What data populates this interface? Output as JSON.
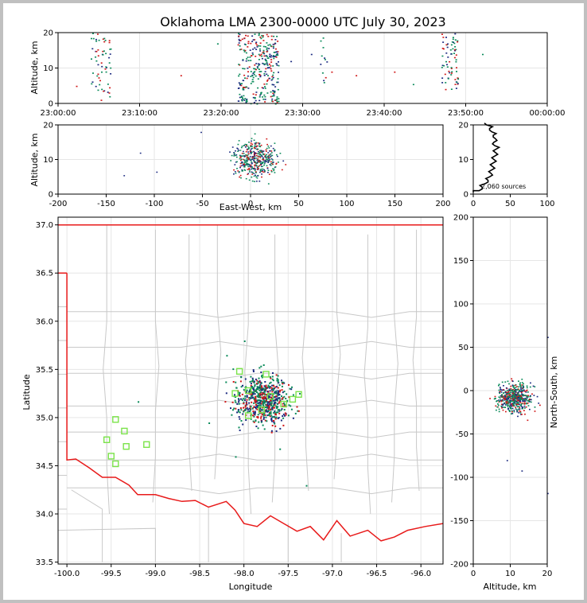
{
  "title": "Oklahoma LMA 2300-0000 UTC July 30, 2023",
  "colors": {
    "early": "#1b2a80",
    "mid": "#0a8a5a",
    "late": "#d01818",
    "stations": "#7be34a",
    "border": "#e81a1a",
    "county": "#c8c8c8"
  },
  "chart_data": [
    {
      "name": "time_height",
      "type": "scatter",
      "xlabel": "",
      "ylabel": "Altitude, km",
      "xticks": [
        "23:00:00",
        "23:10:00",
        "23:20:00",
        "23:30:00",
        "23:40:00",
        "23:50:00",
        "00:00:00"
      ],
      "xlim_minutes": [
        0,
        60
      ],
      "yticks": [
        0,
        10,
        20
      ],
      "ylim": [
        0,
        20
      ],
      "grid": true,
      "clusters": [
        {
          "t_min": 4.0,
          "t_max": 6.5,
          "alt_min": 1,
          "alt_max": 20,
          "count": 60
        },
        {
          "t_min": 22.0,
          "t_max": 27.0,
          "alt_min": 0,
          "alt_max": 20,
          "count": 320
        },
        {
          "t_min": 32.0,
          "t_max": 33.0,
          "alt_min": 6,
          "alt_max": 19,
          "count": 12
        },
        {
          "t_min": 47.0,
          "t_max": 49.0,
          "alt_min": 4,
          "alt_max": 20,
          "count": 70
        }
      ]
    },
    {
      "name": "east_west_altitude",
      "type": "scatter",
      "xlabel": "East-West, km",
      "ylabel": "Altitude, km",
      "xticks": [
        -200,
        -150,
        -100,
        -50,
        0,
        50,
        100,
        150,
        200
      ],
      "xlim": [
        -200,
        200
      ],
      "yticks": [
        0,
        10,
        20
      ],
      "ylim": [
        0,
        20
      ],
      "grid": true
    },
    {
      "name": "altitude_histogram",
      "type": "line",
      "xticks": [
        0,
        50,
        100
      ],
      "xlim": [
        0,
        100
      ],
      "yticks": [
        0,
        10,
        20
      ],
      "ylim": [
        0,
        20
      ],
      "annotation": "2,060 sources",
      "profile": [
        [
          0,
          0.5
        ],
        [
          8,
          1
        ],
        [
          12,
          2
        ],
        [
          16,
          3
        ],
        [
          20,
          4
        ],
        [
          22,
          5
        ],
        [
          24,
          6
        ],
        [
          25,
          7
        ],
        [
          26,
          8
        ],
        [
          27,
          9
        ],
        [
          28,
          10
        ],
        [
          29,
          11
        ],
        [
          30,
          12
        ],
        [
          31,
          13
        ],
        [
          29,
          14
        ],
        [
          28,
          15
        ],
        [
          30,
          16
        ],
        [
          27,
          17
        ],
        [
          25,
          18
        ],
        [
          22,
          19
        ],
        [
          18,
          20
        ]
      ]
    },
    {
      "name": "plan_view",
      "type": "scatter",
      "xlabel": "Longitude",
      "ylabel": "Latitude",
      "xticks": [
        "-100.0",
        "-99.5",
        "-99.0",
        "-98.5",
        "-98.0",
        "-97.5",
        "-97.0",
        "-96.5",
        "-96.0"
      ],
      "xlim": [
        -100.1,
        -95.75
      ],
      "yticks": [
        "33.5",
        "34.0",
        "34.5",
        "35.0",
        "35.5",
        "36.0",
        "36.5",
        "37.0"
      ],
      "ylim": [
        33.48,
        37.08
      ],
      "grid": true,
      "source_center": [
        -97.8,
        35.2
      ],
      "source_spread": [
        0.3,
        0.25
      ],
      "stations": [
        [
          -99.45,
          34.98
        ],
        [
          -99.35,
          34.86
        ],
        [
          -99.55,
          34.77
        ],
        [
          -99.33,
          34.7
        ],
        [
          -99.5,
          34.6
        ],
        [
          -99.45,
          34.52
        ],
        [
          -99.1,
          34.72
        ],
        [
          -98.05,
          35.48
        ],
        [
          -97.75,
          35.45
        ],
        [
          -98.1,
          35.25
        ],
        [
          -97.95,
          35.28
        ],
        [
          -97.7,
          35.22
        ],
        [
          -97.55,
          35.14
        ],
        [
          -97.45,
          35.19
        ],
        [
          -97.38,
          35.24
        ],
        [
          -97.95,
          35.02
        ],
        [
          -97.8,
          35.08
        ]
      ]
    },
    {
      "name": "altitude_north_south",
      "type": "scatter",
      "xlabel": "Altitude, km",
      "ylabel": "North-South, km",
      "xticks": [
        0,
        10,
        20
      ],
      "xlim": [
        0,
        20
      ],
      "yticks": [
        -200,
        -150,
        -100,
        -50,
        0,
        50,
        100,
        150,
        200
      ],
      "ylim": [
        -200,
        200
      ],
      "grid": true
    }
  ]
}
